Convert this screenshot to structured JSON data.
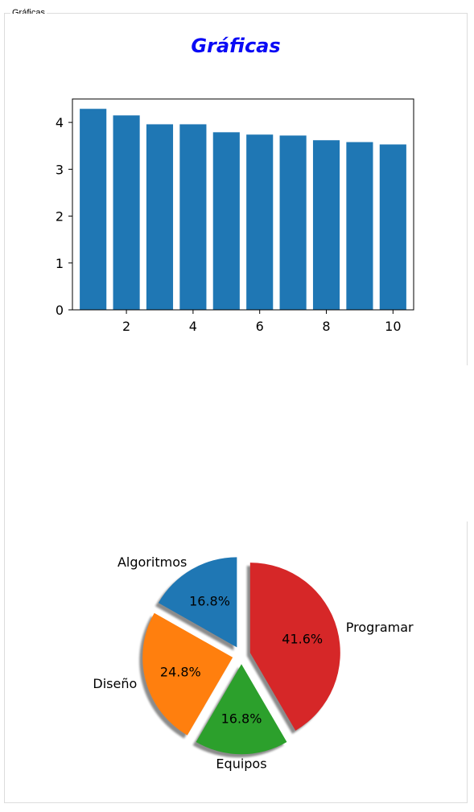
{
  "window": {
    "group_title": "Gráficas"
  },
  "bar_section": {
    "title": "Gráficas"
  },
  "chart_data": [
    {
      "type": "bar",
      "title": "Gráficas",
      "x": [
        1,
        2,
        3,
        4,
        5,
        6,
        7,
        8,
        9,
        10
      ],
      "values": [
        4.29,
        4.15,
        3.96,
        3.96,
        3.79,
        3.74,
        3.72,
        3.62,
        3.58,
        3.53
      ],
      "xticks": [
        2,
        4,
        6,
        8,
        10
      ],
      "yticks": [
        0,
        1,
        2,
        3,
        4
      ],
      "xlim": [
        0.38,
        10.62
      ],
      "ylim": [
        0,
        4.5
      ],
      "color": "#1f77b4",
      "xlabel": "",
      "ylabel": "",
      "grid": false
    },
    {
      "type": "pie",
      "labels": [
        "Algoritmos",
        "Diseño",
        "Equipos",
        "Programar"
      ],
      "values": [
        16.8,
        24.8,
        16.8,
        41.6
      ],
      "value_labels": [
        "16.8%",
        "24.8%",
        "16.8%",
        "41.6%"
      ],
      "colors": [
        "#1f77b4",
        "#ff7f0e",
        "#2ca02c",
        "#d62728"
      ],
      "explode": true,
      "shadow": true,
      "legend": false
    }
  ]
}
